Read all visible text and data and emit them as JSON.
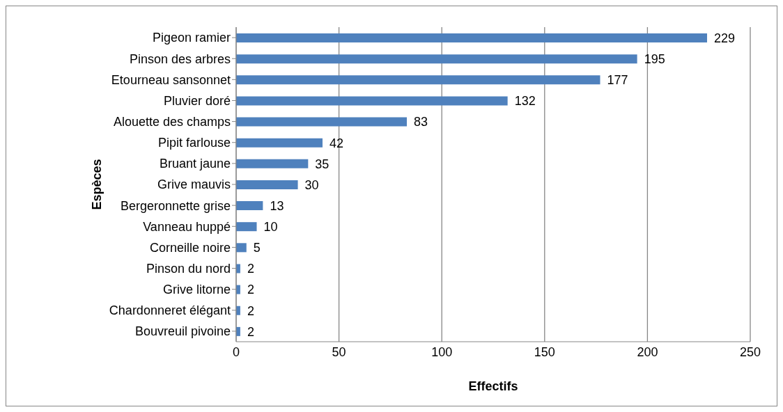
{
  "chart_data": {
    "type": "bar",
    "orientation": "horizontal",
    "xlabel": "Effectifs",
    "ylabel": "Espèces",
    "categories": [
      "Pigeon ramier",
      "Pinson des arbres",
      "Etourneau sansonnet",
      "Pluvier doré",
      "Alouette des champs",
      "Pipit farlouse",
      "Bruant jaune",
      "Grive mauvis",
      "Bergeronnette grise",
      "Vanneau huppé",
      "Corneille noire",
      "Pinson du nord",
      "Grive litorne",
      "Chardonneret élégant",
      "Bouvreuil pivoine"
    ],
    "values": [
      229,
      195,
      177,
      132,
      83,
      42,
      35,
      30,
      13,
      10,
      5,
      2,
      2,
      2,
      2
    ],
    "color": "#4f81bd",
    "xlim": [
      0,
      250
    ],
    "xticks": [
      0,
      50,
      100,
      150,
      200,
      250
    ],
    "grid": "x",
    "data_labels": true
  }
}
